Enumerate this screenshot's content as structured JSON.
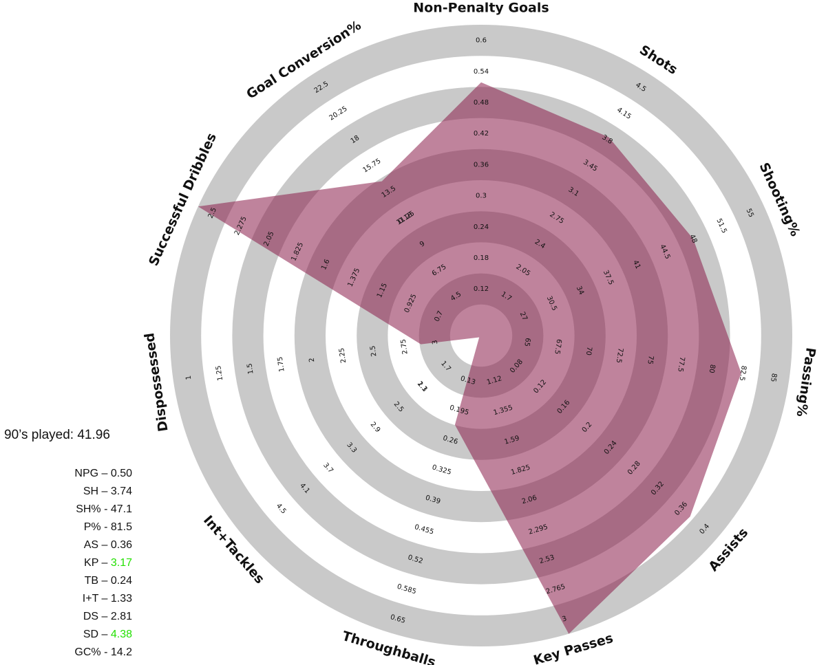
{
  "chart_data": {
    "type": "radar",
    "title": "",
    "axes": [
      {
        "name": "Non-Penalty Goals",
        "ticks": [
          "0.12",
          "0.18",
          "0.24",
          "0.3",
          "0.36",
          "0.42",
          "0.48",
          "0.54",
          "0.6"
        ],
        "min": 0.06,
        "max": 0.6,
        "value": 0.5
      },
      {
        "name": "Shots",
        "ticks": [
          "1.7",
          "2.05",
          "2.4",
          "2.75",
          "3.1",
          "3.45",
          "3.8",
          "4.15",
          "4.5"
        ],
        "min": 1.35,
        "max": 4.5,
        "value": 3.74
      },
      {
        "name": "Shooting%",
        "ticks": [
          "27",
          "30.5",
          "34",
          "37.5",
          "41",
          "44.5",
          "48",
          "51.5",
          "55"
        ],
        "min": 23.5,
        "max": 55,
        "value": 47.1
      },
      {
        "name": "Passing%",
        "ticks": [
          "65",
          "67.5",
          "70",
          "72.5",
          "75",
          "77.5",
          "80",
          "82.5",
          "85"
        ],
        "min": 62.5,
        "max": 85,
        "value": 81.5
      },
      {
        "name": "Assists",
        "ticks": [
          "0.08",
          "0.12",
          "0.16",
          "0.2",
          "0.24",
          "0.28",
          "0.32",
          "0.36",
          "0.4"
        ],
        "min": 0.04,
        "max": 0.4,
        "value": 0.36
      },
      {
        "name": "Key Passes",
        "ticks": [
          "1.12",
          "1.355",
          "1.59",
          "1.825",
          "2.06",
          "2.295",
          "2.53",
          "2.765",
          "3"
        ],
        "min": 0.885,
        "max": 3,
        "value": 3.0
      },
      {
        "name": "Throughballs",
        "ticks": [
          "0.13",
          "0.195",
          "0.26",
          "0.325",
          "0.39",
          "0.455",
          "0.52",
          "0.585",
          "0.65"
        ],
        "min": 0.065,
        "max": 0.65,
        "value": 0.24
      },
      {
        "name": "Int+Tackles",
        "ticks": [
          "1.7",
          "2.1",
          "2.5",
          "2.9",
          "3.3",
          "3.7",
          "4.1",
          "4.5"
        ],
        "min": 1.3,
        "max": 4.9,
        "value": 1.33
      },
      {
        "name": "Dispossessed",
        "ticks": [
          "3",
          "2.75",
          "2.5",
          "2.25",
          "2",
          "1.75",
          "1.5",
          "1.25",
          "1"
        ],
        "min": 3.25,
        "max": 1,
        "value": 2.81
      },
      {
        "name": "Successful Dribbles",
        "ticks": [
          "0.7",
          "0.925",
          "1.15",
          "1.375",
          "1.6",
          "1.825",
          "2.05",
          "2.275",
          "2.5"
        ],
        "min": 0.475,
        "max": 2.5,
        "value": 2.5
      },
      {
        "name": "Goal Conversion%",
        "ticks": [
          "4.5",
          "6.75",
          "9",
          "11.25",
          "13.5",
          "15.75",
          "18",
          "20.25",
          "22.5"
        ],
        "min": 2.25,
        "max": 22.5,
        "value": 14.2
      }
    ],
    "extra_tick_labels": [
      {
        "axis": 7,
        "label": "1.3",
        "level": 1
      },
      {
        "axis": 10,
        "label": "0.18",
        "level": 3
      }
    ],
    "ring_count": 9,
    "grid": true,
    "fill_color": "#8b1e4a",
    "ring_colors": [
      "#c9c9c9",
      "#ffffff"
    ],
    "legend": "none"
  },
  "stats": {
    "played": "90’s played: 41.96",
    "lines": [
      {
        "label": "NPG – ",
        "value": "0.50",
        "highlight": false
      },
      {
        "label": "SH – ",
        "value": "3.74",
        "highlight": false
      },
      {
        "label": "SH% - ",
        "value": "47.1",
        "highlight": false
      },
      {
        "label": "P% - ",
        "value": "81.5",
        "highlight": false
      },
      {
        "label": "AS – ",
        "value": "0.36",
        "highlight": false
      },
      {
        "label": "KP – ",
        "value": "3.17",
        "highlight": true
      },
      {
        "label": "TB – ",
        "value": "0.24",
        "highlight": false
      },
      {
        "label": "I+T – ",
        "value": "1.33",
        "highlight": false
      },
      {
        "label": "DS – ",
        "value": "2.81",
        "highlight": false
      },
      {
        "label": "SD – ",
        "value": "4.38",
        "highlight": true
      },
      {
        "label": "GC% - ",
        "value": "14.2",
        "highlight": false
      }
    ],
    "highlight_color": "#22e000"
  }
}
